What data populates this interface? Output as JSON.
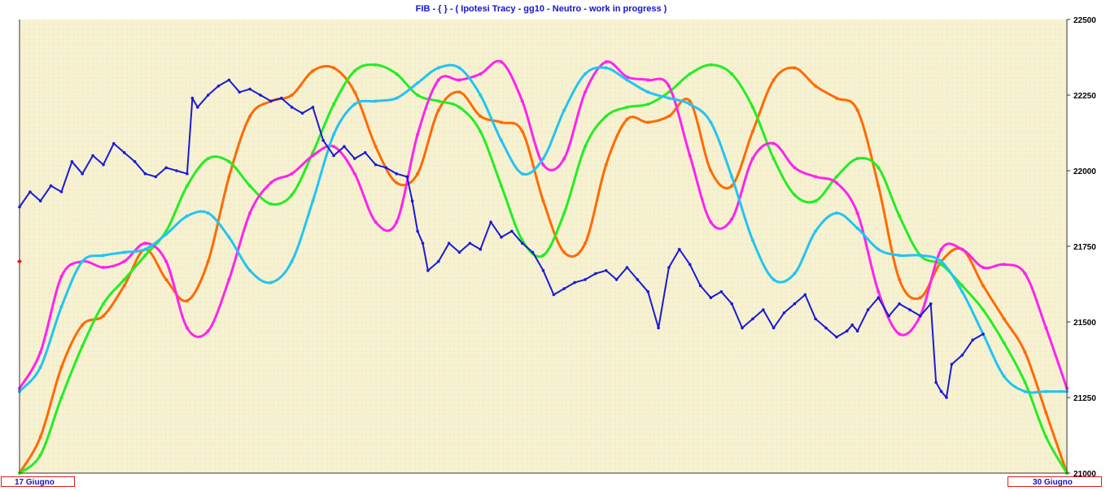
{
  "title": "FIB  -  { } - ( Ipotesi Tracy - gg10 - Neutro - work in progress )",
  "date_start": "17 Giugno",
  "date_end": "30 Giugno",
  "colors": {
    "background": "#f7f2d2",
    "grid": "#d9d2a4",
    "price": "#1a1ad6",
    "orange": "#ff6a00",
    "green": "#22ee22",
    "magenta": "#ff22ee",
    "cyan": "#22c4f2",
    "marker": "#e11a1a"
  },
  "chart_data": {
    "type": "line",
    "title": "FIB  -  { } - ( Ipotesi Tracy - gg10 - Neutro - work in progress )",
    "xlabel": "",
    "ylabel": "",
    "x_labels": [
      "17 Giugno",
      "30 Giugno"
    ],
    "x_range": [
      0,
      1
    ],
    "ylim": [
      21000,
      22500
    ],
    "yticks": [
      21000,
      21250,
      21500,
      21750,
      22000,
      22250,
      22500
    ],
    "grid": true,
    "marker_level": 21700,
    "series": [
      {
        "color": "orange",
        "points": [
          [
            0,
            21000
          ],
          [
            0.02,
            21120
          ],
          [
            0.04,
            21350
          ],
          [
            0.06,
            21490
          ],
          [
            0.08,
            21520
          ],
          [
            0.1,
            21620
          ],
          [
            0.12,
            21740
          ],
          [
            0.14,
            21640
          ],
          [
            0.16,
            21570
          ],
          [
            0.18,
            21700
          ],
          [
            0.2,
            21980
          ],
          [
            0.22,
            22180
          ],
          [
            0.24,
            22230
          ],
          [
            0.26,
            22250
          ],
          [
            0.28,
            22330
          ],
          [
            0.3,
            22340
          ],
          [
            0.32,
            22260
          ],
          [
            0.34,
            22080
          ],
          [
            0.36,
            21960
          ],
          [
            0.38,
            21990
          ],
          [
            0.4,
            22200
          ],
          [
            0.42,
            22260
          ],
          [
            0.44,
            22180
          ],
          [
            0.46,
            22160
          ],
          [
            0.48,
            22130
          ],
          [
            0.5,
            21900
          ],
          [
            0.52,
            21730
          ],
          [
            0.54,
            21760
          ],
          [
            0.56,
            22020
          ],
          [
            0.58,
            22170
          ],
          [
            0.6,
            22160
          ],
          [
            0.62,
            22180
          ],
          [
            0.64,
            22230
          ],
          [
            0.66,
            22000
          ],
          [
            0.68,
            21950
          ],
          [
            0.7,
            22130
          ],
          [
            0.72,
            22300
          ],
          [
            0.74,
            22340
          ],
          [
            0.76,
            22280
          ],
          [
            0.78,
            22240
          ],
          [
            0.8,
            22200
          ],
          [
            0.82,
            21950
          ],
          [
            0.84,
            21640
          ],
          [
            0.86,
            21580
          ],
          [
            0.88,
            21700
          ],
          [
            0.9,
            21740
          ],
          [
            0.92,
            21620
          ],
          [
            0.94,
            21510
          ],
          [
            0.96,
            21400
          ],
          [
            0.98,
            21200
          ],
          [
            1,
            21000
          ]
        ]
      },
      {
        "color": "green",
        "points": [
          [
            0,
            21000
          ],
          [
            0.02,
            21060
          ],
          [
            0.04,
            21250
          ],
          [
            0.06,
            21420
          ],
          [
            0.08,
            21560
          ],
          [
            0.1,
            21640
          ],
          [
            0.12,
            21720
          ],
          [
            0.14,
            21800
          ],
          [
            0.16,
            21950
          ],
          [
            0.18,
            22040
          ],
          [
            0.2,
            22030
          ],
          [
            0.22,
            21950
          ],
          [
            0.24,
            21890
          ],
          [
            0.26,
            21920
          ],
          [
            0.28,
            22060
          ],
          [
            0.3,
            22220
          ],
          [
            0.32,
            22330
          ],
          [
            0.34,
            22350
          ],
          [
            0.36,
            22320
          ],
          [
            0.38,
            22250
          ],
          [
            0.4,
            22230
          ],
          [
            0.42,
            22210
          ],
          [
            0.44,
            22130
          ],
          [
            0.46,
            21950
          ],
          [
            0.48,
            21770
          ],
          [
            0.5,
            21720
          ],
          [
            0.52,
            21860
          ],
          [
            0.54,
            22080
          ],
          [
            0.56,
            22180
          ],
          [
            0.58,
            22210
          ],
          [
            0.6,
            22220
          ],
          [
            0.62,
            22260
          ],
          [
            0.64,
            22320
          ],
          [
            0.66,
            22350
          ],
          [
            0.68,
            22320
          ],
          [
            0.7,
            22210
          ],
          [
            0.72,
            22040
          ],
          [
            0.74,
            21920
          ],
          [
            0.76,
            21900
          ],
          [
            0.78,
            21980
          ],
          [
            0.8,
            22040
          ],
          [
            0.82,
            22010
          ],
          [
            0.84,
            21850
          ],
          [
            0.86,
            21720
          ],
          [
            0.88,
            21690
          ],
          [
            0.9,
            21620
          ],
          [
            0.92,
            21540
          ],
          [
            0.94,
            21430
          ],
          [
            0.96,
            21300
          ],
          [
            0.98,
            21120
          ],
          [
            1,
            21000
          ]
        ]
      },
      {
        "color": "magenta",
        "points": [
          [
            0,
            21280
          ],
          [
            0.02,
            21400
          ],
          [
            0.04,
            21650
          ],
          [
            0.06,
            21700
          ],
          [
            0.08,
            21680
          ],
          [
            0.1,
            21700
          ],
          [
            0.12,
            21760
          ],
          [
            0.14,
            21700
          ],
          [
            0.16,
            21480
          ],
          [
            0.18,
            21470
          ],
          [
            0.2,
            21640
          ],
          [
            0.22,
            21860
          ],
          [
            0.24,
            21960
          ],
          [
            0.26,
            21990
          ],
          [
            0.28,
            22050
          ],
          [
            0.3,
            22080
          ],
          [
            0.32,
            21990
          ],
          [
            0.34,
            21830
          ],
          [
            0.36,
            21830
          ],
          [
            0.38,
            22120
          ],
          [
            0.4,
            22300
          ],
          [
            0.42,
            22300
          ],
          [
            0.44,
            22320
          ],
          [
            0.46,
            22360
          ],
          [
            0.48,
            22230
          ],
          [
            0.5,
            22020
          ],
          [
            0.52,
            22040
          ],
          [
            0.54,
            22260
          ],
          [
            0.56,
            22360
          ],
          [
            0.58,
            22310
          ],
          [
            0.6,
            22300
          ],
          [
            0.62,
            22280
          ],
          [
            0.64,
            22050
          ],
          [
            0.66,
            21830
          ],
          [
            0.68,
            21840
          ],
          [
            0.7,
            22040
          ],
          [
            0.72,
            22090
          ],
          [
            0.74,
            22010
          ],
          [
            0.76,
            21980
          ],
          [
            0.78,
            21960
          ],
          [
            0.8,
            21860
          ],
          [
            0.82,
            21600
          ],
          [
            0.84,
            21460
          ],
          [
            0.86,
            21520
          ],
          [
            0.88,
            21740
          ],
          [
            0.9,
            21740
          ],
          [
            0.92,
            21680
          ],
          [
            0.94,
            21690
          ],
          [
            0.96,
            21660
          ],
          [
            0.98,
            21480
          ],
          [
            1,
            21280
          ]
        ]
      },
      {
        "color": "cyan",
        "points": [
          [
            0,
            21270
          ],
          [
            0.02,
            21350
          ],
          [
            0.04,
            21550
          ],
          [
            0.06,
            21700
          ],
          [
            0.08,
            21720
          ],
          [
            0.1,
            21730
          ],
          [
            0.12,
            21740
          ],
          [
            0.14,
            21790
          ],
          [
            0.16,
            21850
          ],
          [
            0.18,
            21860
          ],
          [
            0.2,
            21780
          ],
          [
            0.22,
            21670
          ],
          [
            0.24,
            21630
          ],
          [
            0.26,
            21700
          ],
          [
            0.28,
            21900
          ],
          [
            0.3,
            22120
          ],
          [
            0.32,
            22220
          ],
          [
            0.34,
            22230
          ],
          [
            0.36,
            22240
          ],
          [
            0.38,
            22290
          ],
          [
            0.4,
            22340
          ],
          [
            0.42,
            22340
          ],
          [
            0.44,
            22250
          ],
          [
            0.46,
            22100
          ],
          [
            0.48,
            21990
          ],
          [
            0.5,
            22040
          ],
          [
            0.52,
            22200
          ],
          [
            0.54,
            22320
          ],
          [
            0.56,
            22340
          ],
          [
            0.58,
            22300
          ],
          [
            0.6,
            22260
          ],
          [
            0.62,
            22240
          ],
          [
            0.64,
            22220
          ],
          [
            0.66,
            22160
          ],
          [
            0.68,
            21980
          ],
          [
            0.7,
            21770
          ],
          [
            0.72,
            21640
          ],
          [
            0.74,
            21660
          ],
          [
            0.76,
            21800
          ],
          [
            0.78,
            21860
          ],
          [
            0.8,
            21810
          ],
          [
            0.82,
            21740
          ],
          [
            0.84,
            21720
          ],
          [
            0.86,
            21720
          ],
          [
            0.88,
            21700
          ],
          [
            0.9,
            21600
          ],
          [
            0.92,
            21460
          ],
          [
            0.94,
            21320
          ],
          [
            0.96,
            21270
          ],
          [
            0.98,
            21270
          ],
          [
            1,
            21270
          ]
        ]
      },
      {
        "color": "price",
        "points": [
          [
            0,
            21880
          ],
          [
            0.01,
            21930
          ],
          [
            0.02,
            21900
          ],
          [
            0.03,
            21950
          ],
          [
            0.04,
            21930
          ],
          [
            0.05,
            22030
          ],
          [
            0.06,
            21990
          ],
          [
            0.07,
            22050
          ],
          [
            0.08,
            22020
          ],
          [
            0.09,
            22090
          ],
          [
            0.1,
            22060
          ],
          [
            0.11,
            22030
          ],
          [
            0.12,
            21990
          ],
          [
            0.13,
            21980
          ],
          [
            0.14,
            22010
          ],
          [
            0.15,
            22000
          ],
          [
            0.16,
            21990
          ],
          [
            0.165,
            22240
          ],
          [
            0.17,
            22210
          ],
          [
            0.18,
            22250
          ],
          [
            0.19,
            22280
          ],
          [
            0.2,
            22300
          ],
          [
            0.21,
            22260
          ],
          [
            0.22,
            22270
          ],
          [
            0.23,
            22250
          ],
          [
            0.24,
            22230
          ],
          [
            0.25,
            22240
          ],
          [
            0.26,
            22210
          ],
          [
            0.27,
            22190
          ],
          [
            0.28,
            22210
          ],
          [
            0.29,
            22100
          ],
          [
            0.3,
            22050
          ],
          [
            0.31,
            22080
          ],
          [
            0.32,
            22040
          ],
          [
            0.33,
            22060
          ],
          [
            0.34,
            22020
          ],
          [
            0.35,
            22010
          ],
          [
            0.36,
            21990
          ],
          [
            0.37,
            21980
          ],
          [
            0.375,
            21900
          ],
          [
            0.38,
            21800
          ],
          [
            0.385,
            21760
          ],
          [
            0.39,
            21670
          ],
          [
            0.4,
            21700
          ],
          [
            0.41,
            21760
          ],
          [
            0.42,
            21730
          ],
          [
            0.43,
            21760
          ],
          [
            0.44,
            21740
          ],
          [
            0.45,
            21830
          ],
          [
            0.46,
            21780
          ],
          [
            0.47,
            21800
          ],
          [
            0.48,
            21760
          ],
          [
            0.49,
            21730
          ],
          [
            0.5,
            21670
          ],
          [
            0.51,
            21590
          ],
          [
            0.52,
            21610
          ],
          [
            0.53,
            21630
          ],
          [
            0.54,
            21640
          ],
          [
            0.55,
            21660
          ],
          [
            0.56,
            21670
          ],
          [
            0.57,
            21640
          ],
          [
            0.58,
            21680
          ],
          [
            0.59,
            21640
          ],
          [
            0.6,
            21600
          ],
          [
            0.61,
            21480
          ],
          [
            0.62,
            21680
          ],
          [
            0.63,
            21740
          ],
          [
            0.64,
            21690
          ],
          [
            0.65,
            21620
          ],
          [
            0.66,
            21580
          ],
          [
            0.67,
            21600
          ],
          [
            0.68,
            21560
          ],
          [
            0.69,
            21480
          ],
          [
            0.7,
            21510
          ],
          [
            0.71,
            21540
          ],
          [
            0.72,
            21480
          ],
          [
            0.73,
            21530
          ],
          [
            0.74,
            21560
          ],
          [
            0.75,
            21590
          ],
          [
            0.76,
            21510
          ],
          [
            0.77,
            21480
          ],
          [
            0.78,
            21450
          ],
          [
            0.79,
            21470
          ],
          [
            0.795,
            21490
          ],
          [
            0.8,
            21470
          ],
          [
            0.81,
            21540
          ],
          [
            0.82,
            21580
          ],
          [
            0.83,
            21520
          ],
          [
            0.84,
            21560
          ],
          [
            0.85,
            21540
          ],
          [
            0.86,
            21520
          ],
          [
            0.87,
            21560
          ],
          [
            0.875,
            21300
          ],
          [
            0.88,
            21270
          ],
          [
            0.885,
            21250
          ],
          [
            0.89,
            21360
          ],
          [
            0.9,
            21390
          ],
          [
            0.91,
            21440
          ],
          [
            0.92,
            21460
          ]
        ]
      }
    ]
  }
}
